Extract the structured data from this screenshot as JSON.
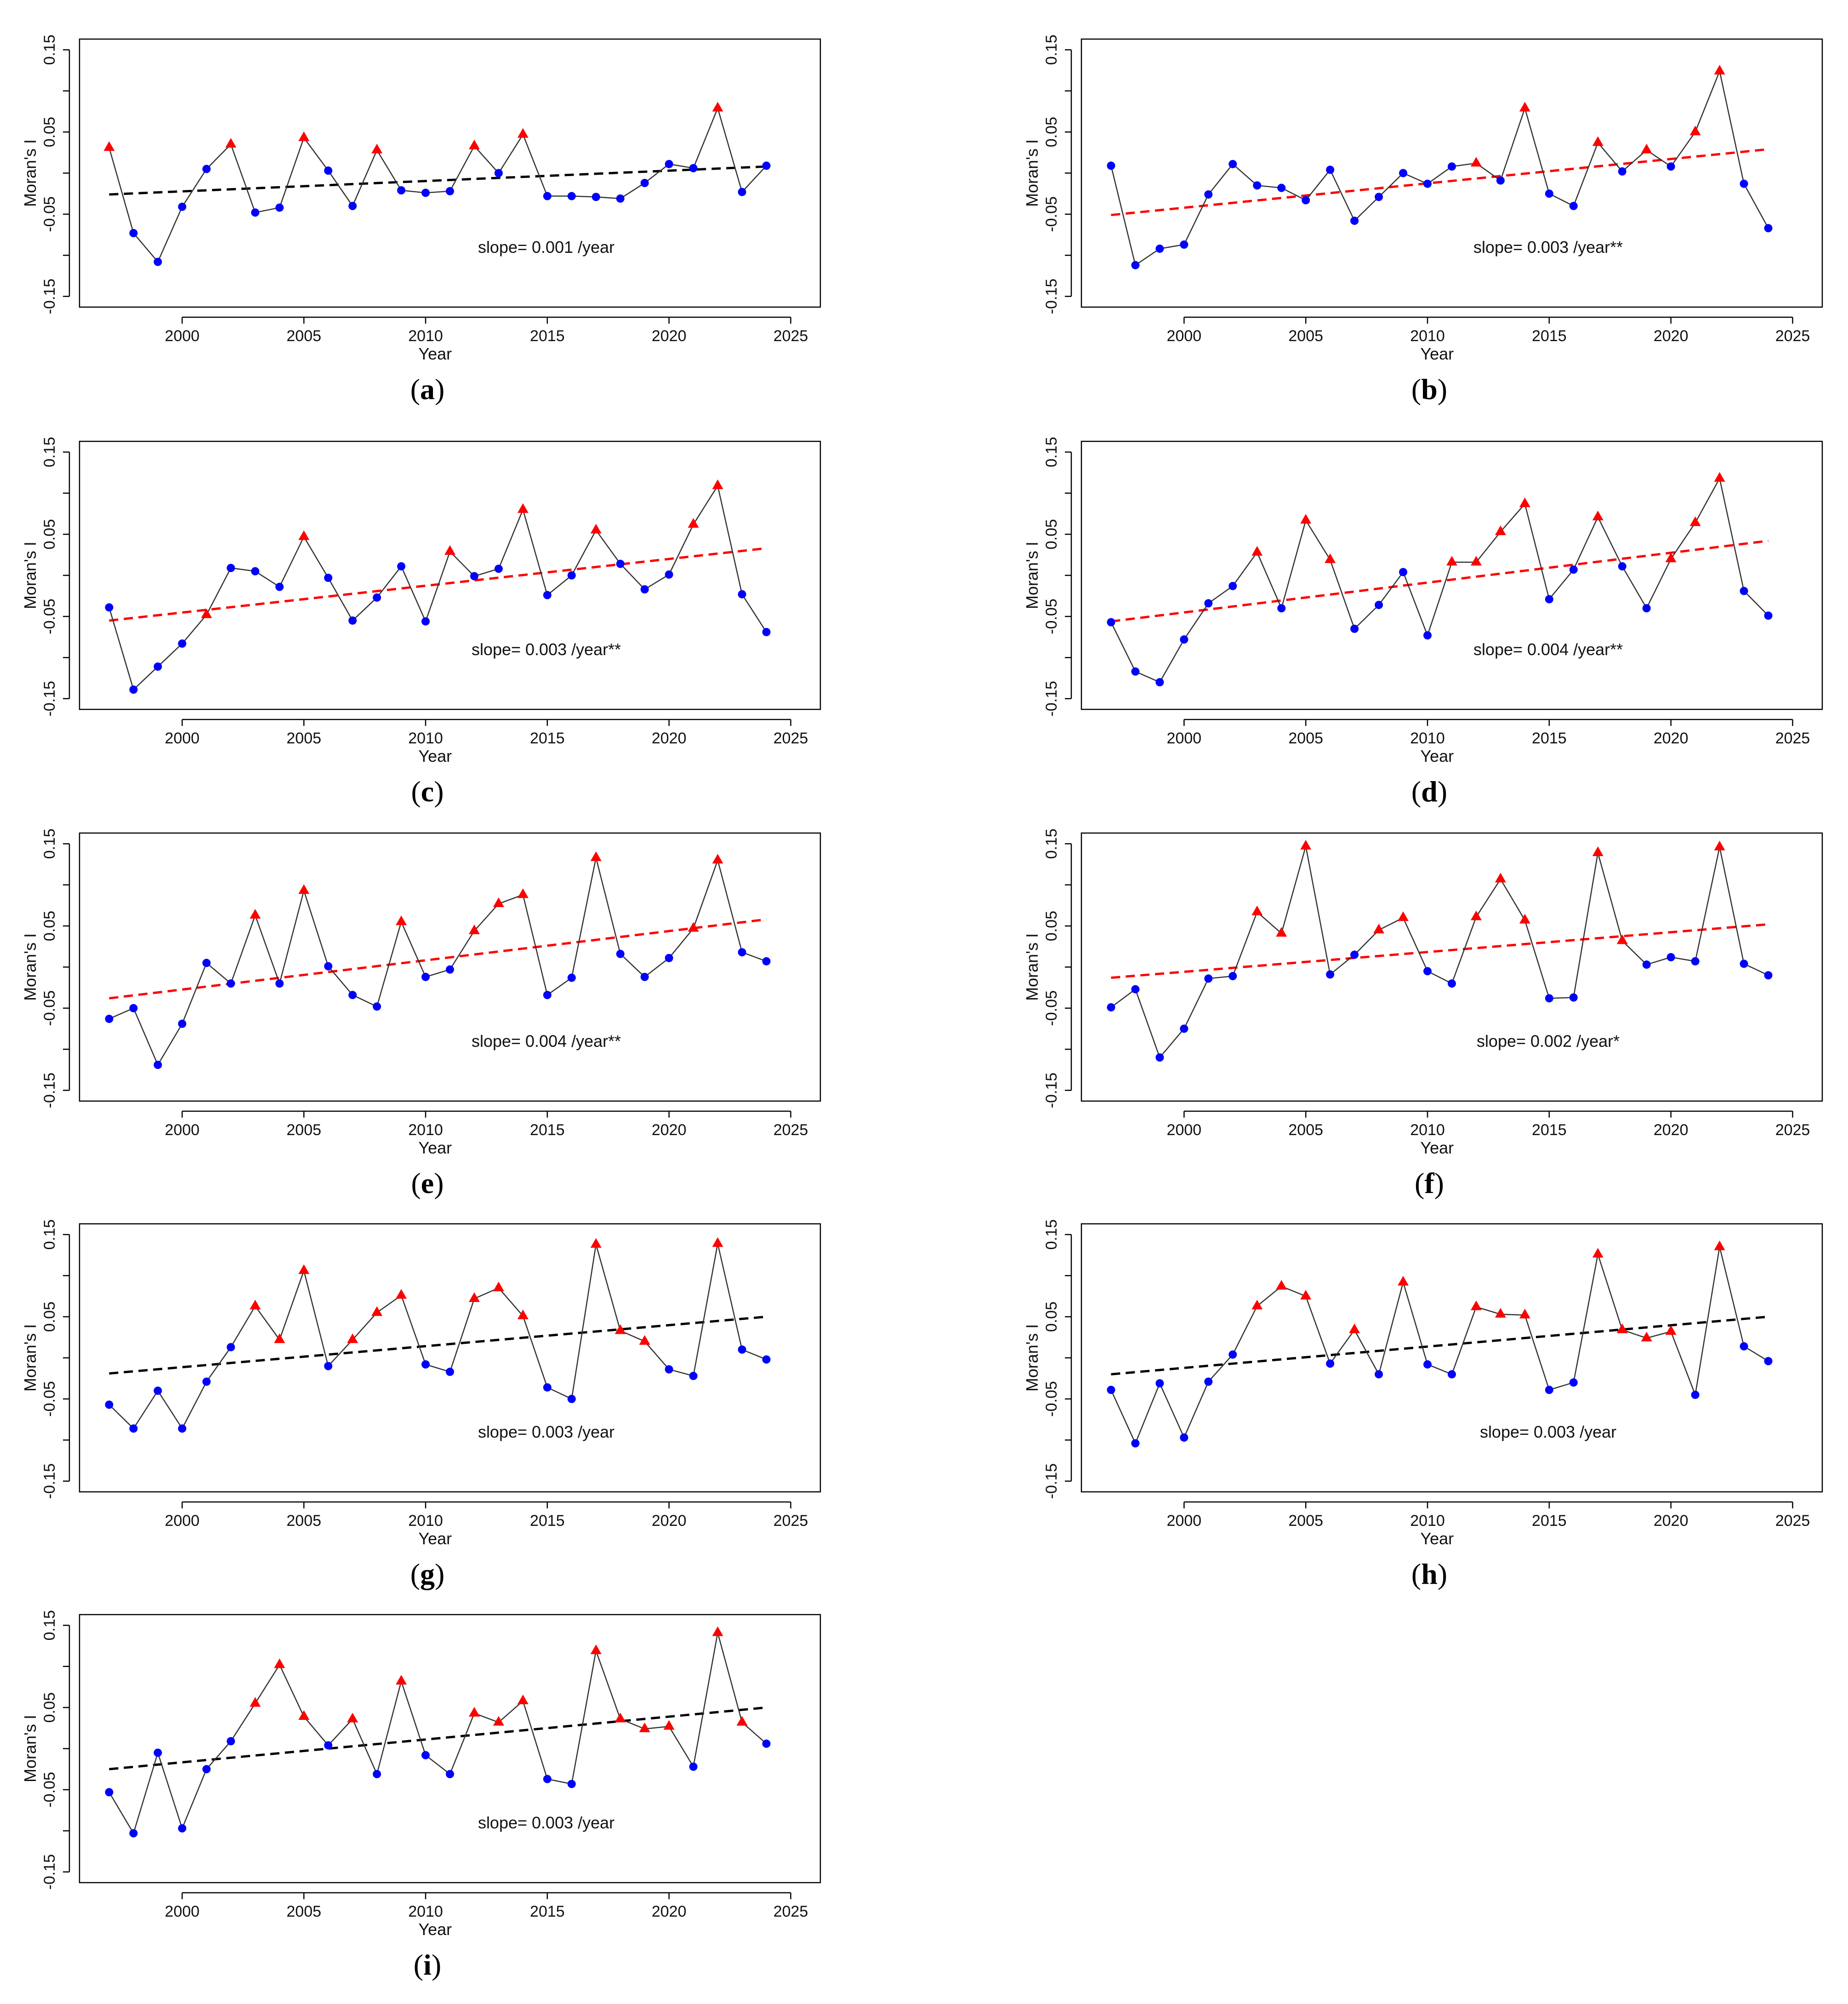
{
  "chart_data": [
    {
      "type": "line",
      "panel_label": "a",
      "xlabel": "Year",
      "ylabel": "Moran's I",
      "xlim": [
        1997,
        2025
      ],
      "ylim": [
        -0.15,
        0.15
      ],
      "xticks": [
        "2000",
        "2005",
        "2010",
        "2015",
        "2020",
        "2025"
      ],
      "yticks": [
        "-0.15",
        "-0.05",
        "0.05",
        "0.15"
      ],
      "slope_text": "slope= 0.001 /year",
      "trend": {
        "color": "#000000",
        "start": -0.026,
        "end": 0.008
      },
      "x": [
        1997,
        1998,
        1999,
        2000,
        2001,
        2002,
        2003,
        2004,
        2005,
        2006,
        2007,
        2008,
        2009,
        2010,
        2011,
        2012,
        2013,
        2014,
        2015,
        2016,
        2017,
        2018,
        2019,
        2020,
        2021,
        2022,
        2023,
        2024
      ],
      "values": [
        0.031,
        -0.073,
        -0.108,
        -0.041,
        0.005,
        0.035,
        -0.048,
        -0.042,
        0.043,
        0.003,
        -0.04,
        0.028,
        -0.021,
        -0.024,
        -0.022,
        0.033,
        0.0,
        0.047,
        -0.028,
        -0.028,
        -0.029,
        -0.031,
        -0.012,
        0.011,
        0.006,
        0.079,
        -0.023,
        0.009
      ],
      "markers": [
        "t",
        "c",
        "c",
        "c",
        "c",
        "t",
        "c",
        "c",
        "t",
        "c",
        "c",
        "t",
        "c",
        "c",
        "c",
        "t",
        "c",
        "t",
        "c",
        "c",
        "c",
        "c",
        "c",
        "c",
        "c",
        "t",
        "c",
        "c"
      ]
    },
    {
      "type": "line",
      "panel_label": "b",
      "xlabel": "Year",
      "ylabel": "Moran's I",
      "xlim": [
        1997,
        2025
      ],
      "ylim": [
        -0.15,
        0.15
      ],
      "xticks": [
        "2000",
        "2005",
        "2010",
        "2015",
        "2020",
        "2025"
      ],
      "yticks": [
        "-0.15",
        "-0.05",
        "0.05",
        "0.15"
      ],
      "slope_text": "slope= 0.003 /year**",
      "trend": {
        "color": "#ff0000",
        "start": -0.051,
        "end": 0.029
      },
      "x": [
        1997,
        1998,
        1999,
        2000,
        2001,
        2002,
        2003,
        2004,
        2005,
        2006,
        2007,
        2008,
        2009,
        2010,
        2011,
        2012,
        2013,
        2014,
        2015,
        2016,
        2017,
        2018,
        2019,
        2020,
        2021,
        2022,
        2023,
        2024
      ],
      "values": [
        0.009,
        -0.112,
        -0.092,
        -0.087,
        -0.026,
        0.011,
        -0.015,
        -0.018,
        -0.033,
        0.004,
        -0.058,
        -0.029,
        0.0,
        -0.013,
        0.008,
        0.012,
        -0.009,
        0.079,
        -0.025,
        -0.04,
        0.037,
        0.002,
        0.028,
        0.008,
        0.05,
        0.124,
        -0.013,
        -0.067
      ],
      "markers": [
        "c",
        "c",
        "c",
        "c",
        "c",
        "c",
        "c",
        "c",
        "c",
        "c",
        "c",
        "c",
        "c",
        "c",
        "c",
        "t",
        "c",
        "t",
        "c",
        "c",
        "t",
        "c",
        "t",
        "c",
        "t",
        "t",
        "c",
        "c"
      ]
    },
    {
      "type": "line",
      "panel_label": "c",
      "xlabel": "Year",
      "ylabel": "Moran's I",
      "xlim": [
        1997,
        2025
      ],
      "ylim": [
        -0.15,
        0.15
      ],
      "xticks": [
        "2000",
        "2005",
        "2010",
        "2015",
        "2020",
        "2025"
      ],
      "yticks": [
        "-0.15",
        "-0.05",
        "0.05",
        "0.15"
      ],
      "slope_text": "slope= 0.003 /year**",
      "trend": {
        "color": "#ff0000",
        "start": -0.055,
        "end": 0.033
      },
      "x": [
        1997,
        1998,
        1999,
        2000,
        2001,
        2002,
        2003,
        2004,
        2005,
        2006,
        2007,
        2008,
        2009,
        2010,
        2011,
        2012,
        2013,
        2014,
        2015,
        2016,
        2017,
        2018,
        2019,
        2020,
        2021,
        2022,
        2023,
        2024
      ],
      "values": [
        -0.039,
        -0.139,
        -0.111,
        -0.083,
        -0.048,
        0.009,
        0.005,
        -0.014,
        0.047,
        -0.003,
        -0.055,
        -0.027,
        0.011,
        -0.056,
        0.029,
        -0.001,
        0.008,
        0.08,
        -0.024,
        0.0,
        0.055,
        0.014,
        -0.017,
        0.001,
        0.062,
        0.109,
        -0.023,
        -0.069
      ],
      "markers": [
        "c",
        "c",
        "c",
        "c",
        "t",
        "c",
        "c",
        "c",
        "t",
        "c",
        "c",
        "c",
        "c",
        "c",
        "t",
        "c",
        "c",
        "t",
        "c",
        "c",
        "t",
        "c",
        "c",
        "c",
        "t",
        "t",
        "c",
        "c"
      ]
    },
    {
      "type": "line",
      "panel_label": "d",
      "xlabel": "Year",
      "ylabel": "Moran's I",
      "xlim": [
        1997,
        2025
      ],
      "ylim": [
        -0.15,
        0.15
      ],
      "xticks": [
        "2000",
        "2005",
        "2010",
        "2015",
        "2020",
        "2025"
      ],
      "yticks": [
        "-0.15",
        "-0.05",
        "0.05",
        "0.15"
      ],
      "slope_text": "slope= 0.004 /year**",
      "trend": {
        "color": "#ff0000",
        "start": -0.056,
        "end": 0.042
      },
      "x": [
        1997,
        1998,
        1999,
        2000,
        2001,
        2002,
        2003,
        2004,
        2005,
        2006,
        2007,
        2008,
        2009,
        2010,
        2011,
        2012,
        2013,
        2014,
        2015,
        2016,
        2017,
        2018,
        2019,
        2020,
        2021,
        2022,
        2023,
        2024
      ],
      "values": [
        -0.057,
        -0.117,
        -0.13,
        -0.078,
        -0.034,
        -0.013,
        0.028,
        -0.04,
        0.067,
        0.019,
        -0.065,
        -0.036,
        0.004,
        -0.073,
        0.016,
        0.016,
        0.053,
        0.087,
        -0.029,
        0.007,
        0.071,
        0.011,
        -0.04,
        0.02,
        0.064,
        0.118,
        -0.019,
        -0.049
      ],
      "markers": [
        "c",
        "c",
        "c",
        "c",
        "c",
        "c",
        "t",
        "c",
        "t",
        "t",
        "c",
        "c",
        "c",
        "c",
        "t",
        "t",
        "t",
        "t",
        "c",
        "c",
        "t",
        "c",
        "c",
        "t",
        "t",
        "t",
        "c",
        "c"
      ]
    },
    {
      "type": "line",
      "panel_label": "e",
      "xlabel": "Year",
      "ylabel": "Moran's I",
      "xlim": [
        1997,
        2025
      ],
      "ylim": [
        -0.15,
        0.15
      ],
      "xticks": [
        "2000",
        "2005",
        "2010",
        "2015",
        "2020",
        "2025"
      ],
      "yticks": [
        "-0.15",
        "-0.05",
        "0.05",
        "0.15"
      ],
      "slope_text": "slope= 0.004 /year**",
      "trend": {
        "color": "#ff0000",
        "start": -0.038,
        "end": 0.058
      },
      "x": [
        1997,
        1998,
        1999,
        2000,
        2001,
        2002,
        2003,
        2004,
        2005,
        2006,
        2007,
        2008,
        2009,
        2010,
        2011,
        2012,
        2013,
        2014,
        2015,
        2016,
        2017,
        2018,
        2019,
        2020,
        2021,
        2022,
        2023,
        2024
      ],
      "values": [
        -0.063,
        -0.05,
        -0.119,
        -0.069,
        0.005,
        -0.02,
        0.063,
        -0.02,
        0.093,
        0.001,
        -0.034,
        -0.048,
        0.055,
        -0.012,
        -0.003,
        0.044,
        0.077,
        0.088,
        -0.034,
        -0.013,
        0.133,
        0.016,
        -0.012,
        0.011,
        0.047,
        0.13,
        0.018,
        0.007
      ],
      "markers": [
        "c",
        "c",
        "c",
        "c",
        "c",
        "c",
        "t",
        "c",
        "t",
        "c",
        "c",
        "c",
        "t",
        "c",
        "c",
        "t",
        "t",
        "t",
        "c",
        "c",
        "t",
        "c",
        "c",
        "c",
        "t",
        "t",
        "c",
        "c"
      ]
    },
    {
      "type": "line",
      "panel_label": "f",
      "xlabel": "Year",
      "ylabel": "Moran's I",
      "xlim": [
        1997,
        2025
      ],
      "ylim": [
        -0.15,
        0.15
      ],
      "xticks": [
        "2000",
        "2005",
        "2010",
        "2015",
        "2020",
        "2025"
      ],
      "yticks": [
        "-0.15",
        "-0.05",
        "0.05",
        "0.15"
      ],
      "slope_text": "slope= 0.002 /year*",
      "trend": {
        "color": "#ff0000",
        "start": -0.013,
        "end": 0.052
      },
      "x": [
        1997,
        1998,
        1999,
        2000,
        2001,
        2002,
        2003,
        2004,
        2005,
        2006,
        2007,
        2008,
        2009,
        2010,
        2011,
        2012,
        2013,
        2014,
        2015,
        2016,
        2017,
        2018,
        2019,
        2020,
        2021,
        2022,
        2023,
        2024
      ],
      "values": [
        -0.049,
        -0.027,
        -0.11,
        -0.075,
        -0.014,
        -0.011,
        0.067,
        0.041,
        0.147,
        -0.009,
        0.015,
        0.045,
        0.06,
        -0.005,
        -0.02,
        0.061,
        0.107,
        0.057,
        -0.038,
        -0.037,
        0.139,
        0.032,
        0.003,
        0.012,
        0.007,
        0.146,
        0.004,
        -0.01
      ],
      "markers": [
        "c",
        "c",
        "c",
        "c",
        "c",
        "c",
        "t",
        "t",
        "t",
        "c",
        "c",
        "t",
        "t",
        "c",
        "c",
        "t",
        "t",
        "t",
        "c",
        "c",
        "t",
        "t",
        "c",
        "c",
        "c",
        "t",
        "c",
        "c"
      ]
    },
    {
      "type": "line",
      "panel_label": "g",
      "xlabel": "Year",
      "ylabel": "Moran's I",
      "xlim": [
        1997,
        2025
      ],
      "ylim": [
        -0.15,
        0.15
      ],
      "xticks": [
        "2000",
        "2005",
        "2010",
        "2015",
        "2020",
        "2025"
      ],
      "yticks": [
        "-0.15",
        "-0.05",
        "0.05",
        "0.15"
      ],
      "slope_text": "slope= 0.003 /year",
      "trend": {
        "color": "#000000",
        "start": -0.019,
        "end": 0.05
      },
      "x": [
        1997,
        1998,
        1999,
        2000,
        2001,
        2002,
        2003,
        2004,
        2005,
        2006,
        2007,
        2008,
        2009,
        2010,
        2011,
        2012,
        2013,
        2014,
        2015,
        2016,
        2017,
        2018,
        2019,
        2020,
        2021,
        2022,
        2023,
        2024
      ],
      "values": [
        -0.057,
        -0.086,
        -0.04,
        -0.086,
        -0.029,
        0.013,
        0.063,
        0.022,
        0.106,
        -0.01,
        0.022,
        0.055,
        0.076,
        -0.008,
        -0.017,
        0.072,
        0.085,
        0.051,
        -0.036,
        -0.05,
        0.138,
        0.033,
        0.02,
        -0.014,
        -0.022,
        0.139,
        0.01,
        -0.002
      ],
      "markers": [
        "c",
        "c",
        "c",
        "c",
        "c",
        "c",
        "t",
        "t",
        "t",
        "c",
        "t",
        "t",
        "t",
        "c",
        "c",
        "t",
        "t",
        "t",
        "c",
        "c",
        "t",
        "t",
        "t",
        "c",
        "c",
        "t",
        "c",
        "c"
      ]
    },
    {
      "type": "line",
      "panel_label": "h",
      "xlabel": "Year",
      "ylabel": "Moran's I",
      "xlim": [
        1997,
        2025
      ],
      "ylim": [
        -0.15,
        0.15
      ],
      "xticks": [
        "2000",
        "2005",
        "2010",
        "2015",
        "2020",
        "2025"
      ],
      "yticks": [
        "-0.15",
        "-0.05",
        "0.05",
        "0.15"
      ],
      "slope_text": "slope= 0.003 /year",
      "trend": {
        "color": "#000000",
        "start": -0.02,
        "end": 0.05
      },
      "x": [
        1997,
        1998,
        1999,
        2000,
        2001,
        2002,
        2003,
        2004,
        2005,
        2006,
        2007,
        2008,
        2009,
        2010,
        2011,
        2012,
        2013,
        2014,
        2015,
        2016,
        2017,
        2018,
        2019,
        2020,
        2021,
        2022,
        2023,
        2024
      ],
      "values": [
        -0.039,
        -0.104,
        -0.031,
        -0.097,
        -0.029,
        0.004,
        0.063,
        0.087,
        0.075,
        -0.007,
        0.034,
        -0.02,
        0.092,
        -0.008,
        -0.02,
        0.062,
        0.053,
        0.052,
        -0.039,
        -0.03,
        0.126,
        0.034,
        0.024,
        0.032,
        -0.045,
        0.135,
        0.014,
        -0.004
      ],
      "markers": [
        "c",
        "c",
        "c",
        "c",
        "c",
        "c",
        "t",
        "t",
        "t",
        "c",
        "t",
        "c",
        "t",
        "c",
        "c",
        "t",
        "t",
        "t",
        "c",
        "c",
        "t",
        "t",
        "t",
        "t",
        "c",
        "t",
        "c",
        "c"
      ]
    },
    {
      "type": "line",
      "panel_label": "i",
      "xlabel": "Year",
      "ylabel": "Moran's I",
      "xlim": [
        1997,
        2025
      ],
      "ylim": [
        -0.15,
        0.15
      ],
      "xticks": [
        "2000",
        "2005",
        "2010",
        "2015",
        "2020",
        "2025"
      ],
      "yticks": [
        "-0.15",
        "-0.05",
        "0.05",
        "0.15"
      ],
      "slope_text": "slope= 0.003 /year",
      "trend": {
        "color": "#000000",
        "start": -0.025,
        "end": 0.05
      },
      "x": [
        1997,
        1998,
        1999,
        2000,
        2001,
        2002,
        2003,
        2004,
        2005,
        2006,
        2007,
        2008,
        2009,
        2010,
        2011,
        2012,
        2013,
        2014,
        2015,
        2016,
        2017,
        2018,
        2019,
        2020,
        2021,
        2022,
        2023,
        2024
      ],
      "values": [
        -0.053,
        -0.103,
        -0.005,
        -0.097,
        -0.025,
        0.009,
        0.055,
        0.102,
        0.039,
        0.004,
        0.036,
        -0.031,
        0.082,
        -0.008,
        -0.031,
        0.043,
        0.032,
        0.058,
        -0.037,
        -0.043,
        0.119,
        0.036,
        0.024,
        0.027,
        -0.022,
        0.141,
        0.032,
        0.006
      ],
      "markers": [
        "c",
        "c",
        "c",
        "c",
        "c",
        "c",
        "t",
        "t",
        "t",
        "c",
        "t",
        "c",
        "t",
        "c",
        "c",
        "t",
        "t",
        "t",
        "c",
        "c",
        "t",
        "t",
        "t",
        "t",
        "c",
        "t",
        "t",
        "c"
      ]
    }
  ]
}
